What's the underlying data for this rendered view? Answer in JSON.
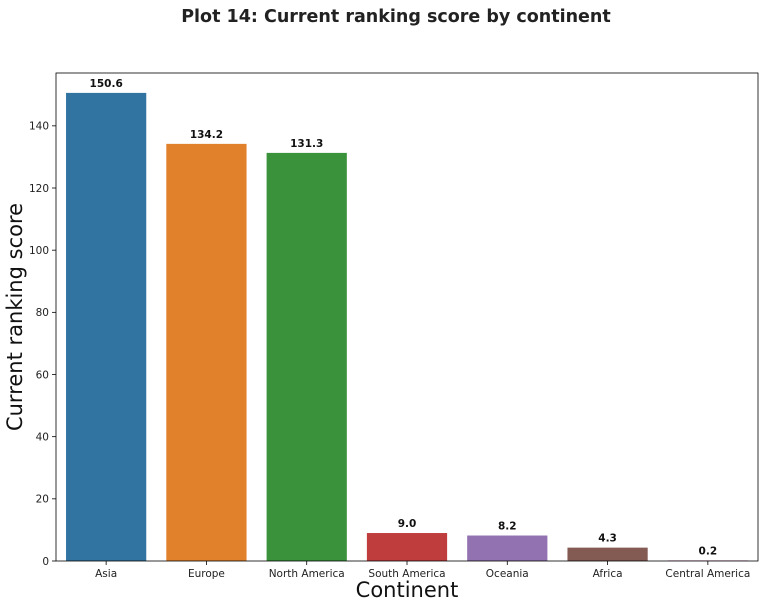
{
  "chart_data": {
    "type": "bar",
    "title": "Plot 14: Current ranking score by continent",
    "xlabel": "Continent",
    "ylabel": "Current ranking score",
    "categories": [
      "Asia",
      "Europe",
      "North America",
      "South America",
      "Oceania",
      "Africa",
      "Central America"
    ],
    "values": [
      150.6,
      134.2,
      131.3,
      9.0,
      8.2,
      4.3,
      0.2
    ],
    "value_labels": [
      "150.6",
      "134.2",
      "131.3",
      "9.0",
      "8.2",
      "4.3",
      "0.2"
    ],
    "colors": [
      "#3274a1",
      "#e1812c",
      "#3a923a",
      "#c03d3e",
      "#9372b2",
      "#845b53",
      "#d684bd"
    ],
    "ylim": [
      0,
      157
    ],
    "yticks": [
      0,
      20,
      40,
      60,
      80,
      100,
      120,
      140
    ],
    "grid": false,
    "legend": "none"
  }
}
